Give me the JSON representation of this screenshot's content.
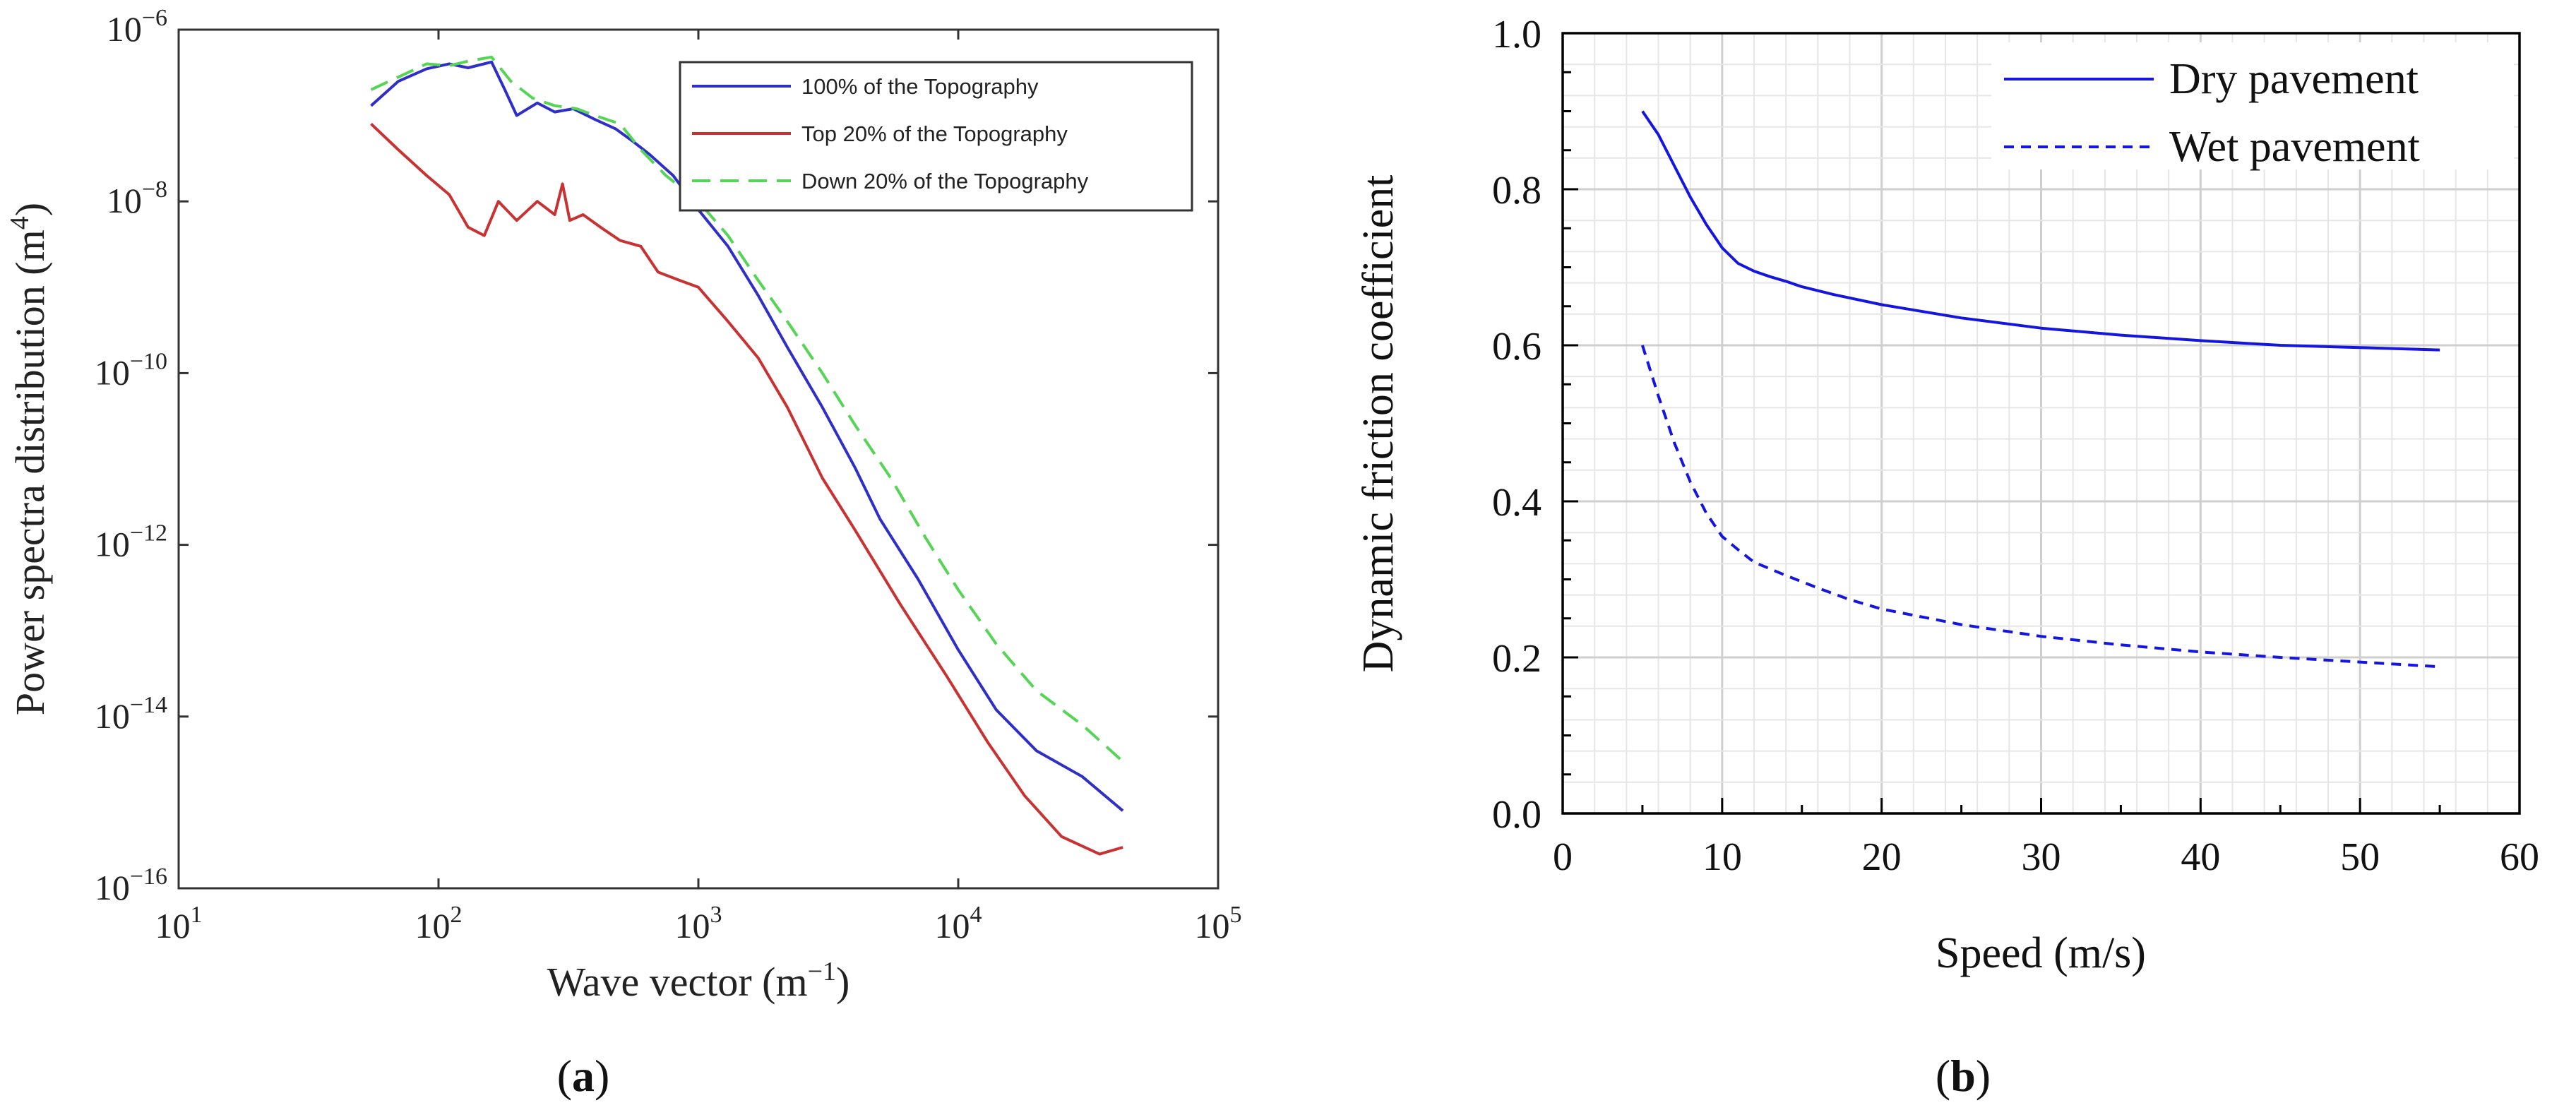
{
  "chart_data": [
    {
      "panel": "(a)",
      "panel_label": {
        "open": "(",
        "letter": "a",
        "close": ")"
      },
      "type": "line",
      "xscale": "log",
      "yscale": "log",
      "xlabel": "Wave vector (m",
      "xlabel_sup": "−1",
      "xlabel_close": ")",
      "ylabel": "Power spectra distribution (m",
      "ylabel_sup": "4",
      "ylabel_close": ")",
      "xlim_exp": [
        1,
        5
      ],
      "ylim_exp": [
        -16,
        -6
      ],
      "x_ticks": [
        {
          "base": "10",
          "exp": "1",
          "value": 10
        },
        {
          "base": "10",
          "exp": "2",
          "value": 100
        },
        {
          "base": "10",
          "exp": "3",
          "value": 1000
        },
        {
          "base": "10",
          "exp": "4",
          "value": 10000
        },
        {
          "base": "10",
          "exp": "5",
          "value": 100000
        }
      ],
      "y_ticks": [
        {
          "base": "10",
          "exp": "−6",
          "value": 1e-06
        },
        {
          "base": "10",
          "exp": "−8",
          "value": 1e-08
        },
        {
          "base": "10",
          "exp": "−10",
          "value": 1e-10
        },
        {
          "base": "10",
          "exp": "−12",
          "value": 1e-12
        },
        {
          "base": "10",
          "exp": "−14",
          "value": 1e-14
        },
        {
          "base": "10",
          "exp": "−16",
          "value": 1e-16
        }
      ],
      "legend_position": "top-right",
      "series": [
        {
          "name": "100% of the Topography",
          "color": "#2f2fc8",
          "dash": "solid",
          "x": [
            55,
            70,
            90,
            110,
            130,
            160,
            180,
            200,
            240,
            280,
            330,
            400,
            480,
            560,
            650,
            800,
            1000,
            1300,
            1700,
            2200,
            3000,
            4000,
            5000,
            7000,
            10000,
            14000,
            20000,
            30000,
            43000
          ],
          "y": [
            1.3e-07,
            2.5e-07,
            3.5e-07,
            4e-07,
            3.6e-07,
            4.2e-07,
            2e-07,
            1e-07,
            1.4e-07,
            1.1e-07,
            1.2e-07,
            9e-08,
            7e-08,
            5e-08,
            3.5e-08,
            2e-08,
            8e-09,
            3e-09,
            8e-10,
            2e-10,
            4e-11,
            8e-12,
            2e-12,
            4e-13,
            6e-14,
            1.2e-14,
            4e-15,
            2e-15,
            8e-16
          ]
        },
        {
          "name": "Top 20% of the Topography",
          "color": "#c83232",
          "dash": "solid",
          "x": [
            55,
            70,
            90,
            110,
            130,
            150,
            170,
            200,
            240,
            280,
            300,
            320,
            360,
            420,
            500,
            600,
            700,
            850,
            1000,
            1300,
            1700,
            2200,
            3000,
            4000,
            6000,
            9000,
            13000,
            18000,
            25000,
            35000,
            43000
          ],
          "y": [
            8e-08,
            4e-08,
            2e-08,
            1.2e-08,
            5e-09,
            4e-09,
            1e-08,
            6e-09,
            1e-08,
            7e-09,
            1.6e-08,
            6e-09,
            7e-09,
            5e-09,
            3.5e-09,
            3e-09,
            1.5e-09,
            1.2e-09,
            1e-09,
            4e-10,
            1.5e-10,
            4e-11,
            6e-12,
            1.5e-12,
            2e-13,
            3e-14,
            5e-15,
            1.2e-15,
            4e-16,
            2.5e-16,
            3e-16
          ]
        },
        {
          "name": "Down 20% of the Topography",
          "color": "#55d455",
          "dash": "dashed",
          "x": [
            55,
            70,
            90,
            110,
            130,
            160,
            190,
            230,
            280,
            340,
            400,
            500,
            600,
            750,
            1000,
            1300,
            1700,
            2200,
            3000,
            4000,
            5500,
            7500,
            10000,
            14000,
            20000,
            30000,
            43000
          ],
          "y": [
            2e-07,
            2.8e-07,
            4e-07,
            3.8e-07,
            4.3e-07,
            4.8e-07,
            2.5e-07,
            1.6e-07,
            1.3e-07,
            1.2e-07,
            1e-07,
            8e-08,
            4e-08,
            2e-08,
            1e-08,
            4e-09,
            1.2e-09,
            4e-10,
            1e-10,
            2.5e-11,
            6e-12,
            1.2e-12,
            3e-13,
            7e-14,
            2e-14,
            8e-15,
            3e-15
          ]
        }
      ]
    },
    {
      "panel": "(b)",
      "panel_label": {
        "open": "(",
        "letter": "b",
        "close": ")"
      },
      "type": "line",
      "xlabel": "Speed (m/s)",
      "ylabel": "Dynamic friction coefficient",
      "xlim": [
        0,
        60
      ],
      "ylim": [
        0,
        1.0
      ],
      "x_ticks": [
        "0",
        "10",
        "20",
        "30",
        "40",
        "50",
        "60"
      ],
      "y_ticks": [
        "0.0",
        "0.2",
        "0.4",
        "0.6",
        "0.8",
        "1.0"
      ],
      "grid": true,
      "legend_position": "top-right",
      "series": [
        {
          "name": "Dry pavement",
          "color": "#1515e0",
          "dash": "solid",
          "x": [
            5,
            6,
            7,
            8,
            9,
            10,
            11,
            12,
            13,
            14,
            15,
            17,
            20,
            25,
            30,
            35,
            40,
            45,
            50,
            55
          ],
          "y": [
            0.9,
            0.87,
            0.83,
            0.79,
            0.755,
            0.725,
            0.705,
            0.695,
            0.688,
            0.682,
            0.675,
            0.665,
            0.652,
            0.635,
            0.622,
            0.613,
            0.606,
            0.6,
            0.597,
            0.594
          ]
        },
        {
          "name": "Wet pavement",
          "color": "#1515e0",
          "dash": "dashed",
          "x": [
            5,
            6,
            7,
            8,
            9,
            10,
            11,
            12,
            14,
            16,
            18,
            20,
            25,
            30,
            35,
            40,
            45,
            50,
            55
          ],
          "y": [
            0.6,
            0.535,
            0.475,
            0.425,
            0.385,
            0.355,
            0.338,
            0.322,
            0.305,
            0.289,
            0.274,
            0.262,
            0.242,
            0.227,
            0.216,
            0.207,
            0.2,
            0.194,
            0.188
          ]
        }
      ]
    }
  ]
}
